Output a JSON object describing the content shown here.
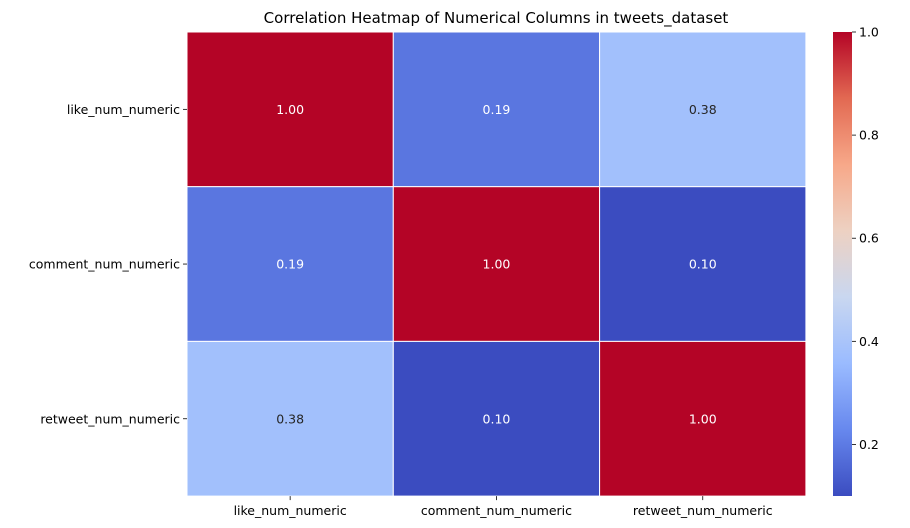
{
  "chart_data": {
    "type": "heatmap",
    "title": "Correlation Heatmap of Numerical Columns in tweets_dataset",
    "xlabel": "",
    "ylabel": "",
    "x_categories": [
      "like_num_numeric",
      "comment_num_numeric",
      "retweet_num_numeric"
    ],
    "y_categories": [
      "like_num_numeric",
      "comment_num_numeric",
      "retweet_num_numeric"
    ],
    "values": [
      [
        1.0,
        0.19,
        0.38
      ],
      [
        0.19,
        1.0,
        0.1
      ],
      [
        0.38,
        0.1,
        1.0
      ]
    ],
    "value_format": "0.00",
    "colormap": "coolwarm",
    "colorbar": {
      "range": [
        0.1,
        1.0
      ],
      "ticks": [
        0.2,
        0.4,
        0.6,
        0.8,
        1.0
      ],
      "tick_labels": [
        "0.2",
        "0.4",
        "0.6",
        "0.8",
        "1.0"
      ]
    },
    "grid": true,
    "cell_border_color": "#ffffff"
  },
  "colors": {
    "coolwarm_stops": [
      "#3b4cc0",
      "#6788ee",
      "#9abbff",
      "#c9d7f0",
      "#edd1c2",
      "#f7a889",
      "#e26952",
      "#b40426"
    ],
    "dark_text": "#262626",
    "light_text": "#ffffff"
  }
}
